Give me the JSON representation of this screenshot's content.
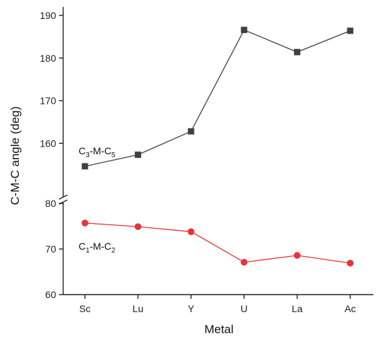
{
  "chart_data": {
    "type": "line",
    "xlabel": "Metal",
    "ylabel": "C-M-C angle (deg)",
    "categories": [
      "Sc",
      "Lu",
      "Y",
      "U",
      "La",
      "Ac"
    ],
    "axis_break": true,
    "upper_segment": {
      "ylim": [
        150,
        190
      ],
      "ticks": [
        160,
        170,
        180,
        190
      ]
    },
    "lower_segment": {
      "ylim": [
        60,
        80
      ],
      "ticks": [
        60,
        70,
        80
      ]
    },
    "series": [
      {
        "name": "C3-M-C5",
        "label_parts": [
          "C",
          "3",
          "-M-C",
          "5"
        ],
        "marker": "square",
        "color": "#404040",
        "segment": "upper",
        "values": [
          154.6,
          157.3,
          162.8,
          186.6,
          181.4,
          186.4
        ]
      },
      {
        "name": "C1-M-C2",
        "label_parts": [
          "C",
          "1",
          "-M-C",
          "2"
        ],
        "marker": "circle",
        "color": "#e8333a",
        "segment": "lower",
        "values": [
          75.7,
          74.9,
          73.8,
          67.1,
          68.6,
          66.9
        ]
      }
    ]
  }
}
